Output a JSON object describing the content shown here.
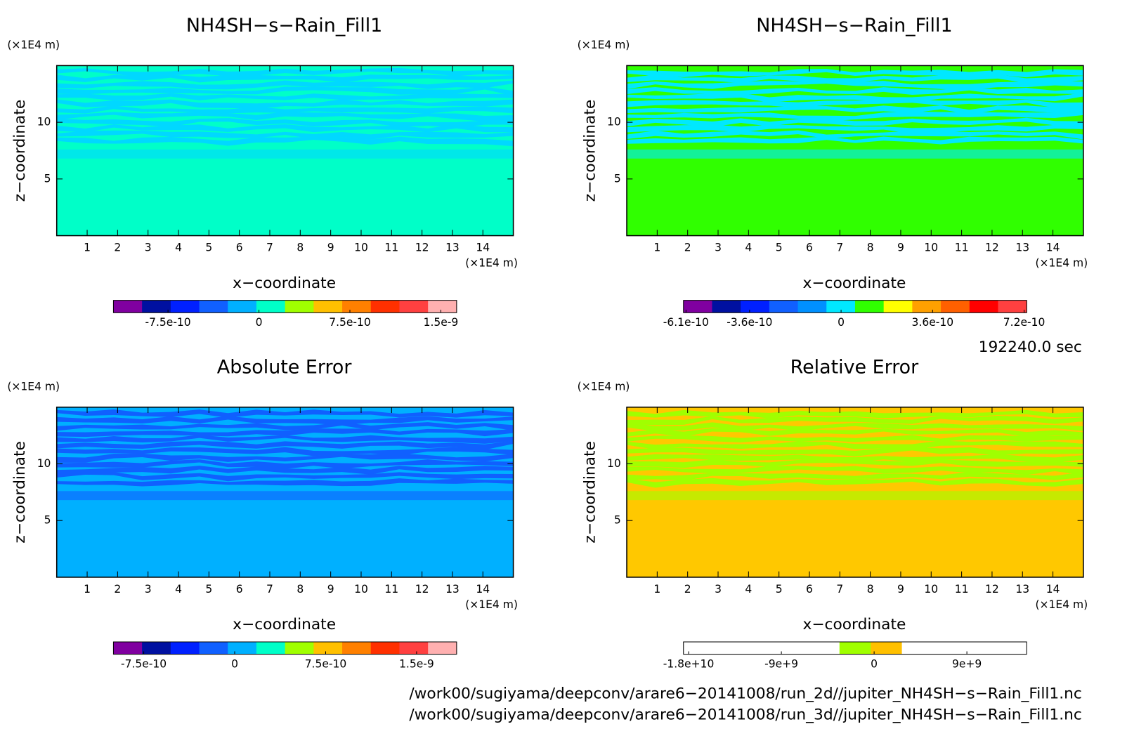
{
  "chart_data": [
    {
      "type": "contour",
      "title": "NH4SH−s−Rain_Fill1",
      "x_label": "x−coordinate",
      "y_label": "z−coordinate",
      "x_unit": "(×1E4 m)",
      "y_unit": "(×1E4 m)",
      "xlim": [
        0,
        15
      ],
      "xticks": [
        1,
        2,
        3,
        4,
        5,
        6,
        7,
        8,
        9,
        10,
        11,
        12,
        13,
        14
      ],
      "ylim": [
        0,
        15
      ],
      "yticks": [
        5,
        10
      ],
      "field_color": "#00ffc8",
      "stripe_color": "#00d8ff",
      "colorbar": {
        "lim": [
          -1.2e-09,
          1.63e-09
        ],
        "ticks": [
          -7.5e-10,
          0,
          7.5e-10,
          1.5e-09
        ],
        "colors": [
          "#8000a0",
          "#0010a0",
          "#0020ff",
          "#1060ff",
          "#00b0ff",
          "#00ffc8",
          "#a0ff00",
          "#ffc000",
          "#ff8000",
          "#ff3000",
          "#ff4040",
          "#ffb0b0"
        ]
      }
    },
    {
      "type": "contour",
      "title": "NH4SH−s−Rain_Fill1",
      "x_label": "x−coordinate",
      "y_label": "z−coordinate",
      "x_unit": "(×1E4 m)",
      "y_unit": "(×1E4 m)",
      "xlim": [
        0,
        15
      ],
      "xticks": [
        1,
        2,
        3,
        4,
        5,
        6,
        7,
        8,
        9,
        10,
        11,
        12,
        13,
        14
      ],
      "ylim": [
        0,
        15
      ],
      "yticks": [
        5,
        10
      ],
      "field_color": "#30ff00",
      "stripe_color": "#00e8ff",
      "colorbar": {
        "lim": [
          -6.2e-10,
          7.3e-10
        ],
        "ticks": [
          -6.1e-10,
          -3.6e-10,
          0,
          3.6e-10,
          7.2e-10
        ],
        "colors": [
          "#8000a0",
          "#0010a0",
          "#0020ff",
          "#1060ff",
          "#0090ff",
          "#00e8ff",
          "#30ff00",
          "#ffff00",
          "#ffa000",
          "#ff6000",
          "#ff0000",
          "#ff4040"
        ]
      }
    },
    {
      "type": "contour",
      "title": "Absolute Error",
      "x_label": "x−coordinate",
      "y_label": "z−coordinate",
      "x_unit": "(×1E4 m)",
      "y_unit": "(×1E4 m)",
      "xlim": [
        0,
        15
      ],
      "xticks": [
        1,
        2,
        3,
        4,
        5,
        6,
        7,
        8,
        9,
        10,
        11,
        12,
        13,
        14
      ],
      "ylim": [
        0,
        15
      ],
      "yticks": [
        5,
        10
      ],
      "field_color": "#00b0ff",
      "stripe_color": "#1060ff",
      "colorbar": {
        "lim": [
          -1e-09,
          1.83e-09
        ],
        "ticks": [
          -7.5e-10,
          0,
          7.5e-10,
          1.5e-09
        ],
        "colors": [
          "#8000a0",
          "#0010a0",
          "#0020ff",
          "#1060ff",
          "#00b0ff",
          "#00ffc8",
          "#a0ff00",
          "#ffc000",
          "#ff8000",
          "#ff3000",
          "#ff4040",
          "#ffb0b0"
        ]
      }
    },
    {
      "type": "contour",
      "title": "Relative Error",
      "x_label": "x−coordinate",
      "y_label": "z−coordinate",
      "x_unit": "(×1E4 m)",
      "y_unit": "(×1E4 m)",
      "xlim": [
        0,
        15
      ],
      "xticks": [
        1,
        2,
        3,
        4,
        5,
        6,
        7,
        8,
        9,
        10,
        11,
        12,
        13,
        14
      ],
      "ylim": [
        0,
        15
      ],
      "yticks": [
        5,
        10
      ],
      "field_color": "#ffc800",
      "stripe_color": "#a0ff00",
      "colorbar": {
        "lim": [
          -18500000000.0,
          14800000000.0
        ],
        "ticks": [
          {
            "value": -18000000000.0,
            "label": "-1.8e+10"
          },
          {
            "value": -9000000000.0,
            "label": "-9e+9"
          },
          0,
          {
            "value": 9000000000.0,
            "label": "9e+9"
          }
        ],
        "colors": [
          "#ffffff",
          "#ffffff",
          "#ffffff",
          "#ffffff",
          "#ffffff",
          "#a0ff00",
          "#ffc000",
          "#ffffff",
          "#ffffff",
          "#ffffff",
          "#ffffff"
        ]
      }
    }
  ],
  "time": "192240.0 sec",
  "files": [
    "/work00/sugiyama/deepconv/arare6−20141008/run_2d//jupiter_NH4SH−s−Rain_Fill1.nc",
    "/work00/sugiyama/deepconv/arare6−20141008/run_3d//jupiter_NH4SH−s−Rain_Fill1.nc"
  ]
}
